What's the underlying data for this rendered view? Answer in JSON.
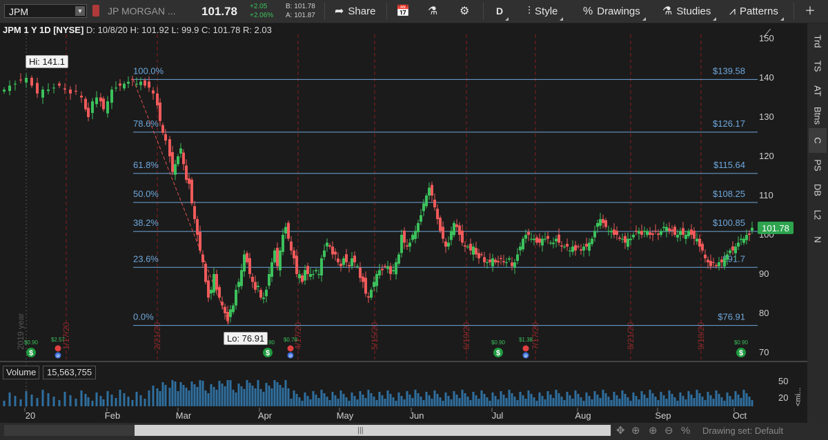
{
  "toolbar": {
    "symbol": "JPM",
    "description": "JP MORGAN ...",
    "last": "101.78",
    "change": "+2.05",
    "change_pct": "+2.06%",
    "bid": "B: 101.78",
    "ask": "A: 101.87",
    "share": "Share",
    "interval": "D",
    "style": "Style",
    "drawings": "Drawings",
    "studies": "Studies",
    "patterns": "Patterns"
  },
  "chart_header": {
    "title": "JPM 1 Y 1D [NYSE]",
    "date": "D: 10/8/20",
    "high": "H: 101.92",
    "low": "L: 99.9",
    "close": "C: 101.78",
    "range": "R: 2.03"
  },
  "side_tabs": [
    "Trd",
    "TS",
    "AT",
    "Btns",
    "C",
    "PS",
    "DB",
    "L2",
    "N"
  ],
  "colors": {
    "up": "#3cc15c",
    "down": "#f05a5a",
    "fib_line": "#6fa8dc",
    "event_line": "#8b1e1e",
    "volume": "#2f6f9f"
  },
  "chart_data": {
    "type": "candlestick",
    "y_ticks": [
      70,
      80,
      90,
      100,
      110,
      120,
      130,
      140,
      150
    ],
    "ylim": [
      67.5,
      151
    ],
    "last_price_label": "101.78",
    "fib_levels": [
      {
        "pct": "100.0%",
        "price": "$139.58",
        "value": 139.58
      },
      {
        "pct": "78.6%",
        "price": "$126.17",
        "value": 126.17
      },
      {
        "pct": "61.8%",
        "price": "$115.64",
        "value": 115.64
      },
      {
        "pct": "50.0%",
        "price": "$108.25",
        "value": 108.25
      },
      {
        "pct": "38.2%",
        "price": "$100.85",
        "value": 100.85
      },
      {
        "pct": "23.6%",
        "price": "$91.7",
        "value": 91.7
      },
      {
        "pct": "0.0%",
        "price": "$76.91",
        "value": 76.91
      }
    ],
    "hi_label": "Hi: 141.1",
    "lo_label": "Lo: 76.91",
    "year_label": "2019 year",
    "event_dates": [
      "1/17/20",
      "2/21/20",
      "4/17/20",
      "5/15/20",
      "6/19/20",
      "7/17/20",
      "8/21/20",
      "9/18/20"
    ],
    "dividends": [
      "$0.90",
      "$0.90",
      "$0.90",
      "$0.90"
    ],
    "earnings": [
      "$2.57",
      "$0.78",
      "$1.38"
    ],
    "dividend_marker": "$",
    "earnings_marker": "⊘",
    "x_months": [
      "20",
      "Feb",
      "Mar",
      "Apr",
      "May",
      "Jun",
      "Jul",
      "Aug",
      "Sep",
      "Oct"
    ],
    "volume_label": "Volume",
    "volume_value": "15,563,755",
    "volume_ticks": [
      "50",
      "20"
    ],
    "volume_side_label": "<mi..."
  },
  "bottom": {
    "drawing_set": "Drawing set: Default"
  }
}
